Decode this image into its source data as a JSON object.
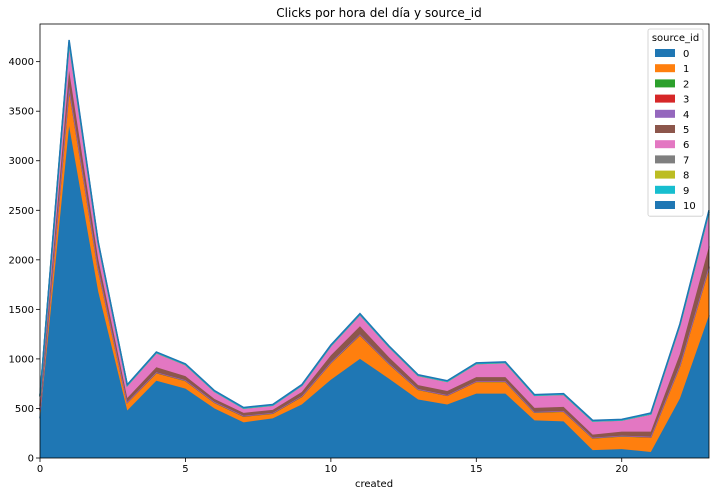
{
  "chart_data": {
    "type": "area",
    "stacked": true,
    "title": "Clicks por hora del día y source_id",
    "xlabel": "created",
    "ylabel": "",
    "xlim": [
      0,
      23
    ],
    "ylim": [
      0,
      4380
    ],
    "x_ticks": [
      0,
      5,
      10,
      15,
      20
    ],
    "y_ticks": [
      0,
      500,
      1000,
      1500,
      2000,
      2500,
      3000,
      3500,
      4000
    ],
    "grid": false,
    "legend": {
      "title": "source_id",
      "position": "top-right"
    },
    "x": [
      0,
      1,
      2,
      3,
      4,
      5,
      6,
      7,
      8,
      9,
      10,
      11,
      12,
      13,
      14,
      15,
      16,
      17,
      18,
      19,
      20,
      21,
      22,
      23
    ],
    "series": [
      {
        "name": "0",
        "color": "#1f77b4",
        "values": [
          400,
          3350,
          1680,
          480,
          780,
          700,
          500,
          360,
          400,
          540,
          790,
          1000,
          800,
          590,
          540,
          650,
          650,
          380,
          370,
          80,
          90,
          60,
          600,
          1440
        ]
      },
      {
        "name": "1",
        "color": "#ff7f0e",
        "values": [
          80,
          380,
          230,
          80,
          80,
          80,
          60,
          60,
          50,
          80,
          170,
          240,
          150,
          100,
          90,
          120,
          120,
          80,
          100,
          120,
          130,
          150,
          330,
          480
        ]
      },
      {
        "name": "2",
        "color": "#2ca02c",
        "values": [
          2,
          6,
          3,
          2,
          2,
          2,
          2,
          2,
          2,
          2,
          2,
          3,
          2,
          2,
          2,
          2,
          2,
          2,
          2,
          2,
          2,
          2,
          3,
          5
        ]
      },
      {
        "name": "3",
        "color": "#d62728",
        "values": [
          2,
          6,
          3,
          2,
          2,
          2,
          2,
          2,
          2,
          2,
          2,
          3,
          2,
          2,
          2,
          2,
          2,
          2,
          2,
          2,
          2,
          2,
          3,
          5
        ]
      },
      {
        "name": "4",
        "color": "#9467bd",
        "values": [
          2,
          6,
          3,
          2,
          2,
          2,
          2,
          2,
          2,
          2,
          2,
          3,
          2,
          2,
          2,
          2,
          2,
          2,
          2,
          2,
          2,
          2,
          3,
          5
        ]
      },
      {
        "name": "5",
        "color": "#8c564b",
        "values": [
          40,
          160,
          90,
          40,
          50,
          40,
          30,
          30,
          30,
          40,
          70,
          80,
          60,
          40,
          40,
          40,
          40,
          40,
          40,
          30,
          40,
          50,
          110,
          200
        ]
      },
      {
        "name": "6",
        "color": "#e377c2",
        "values": [
          90,
          260,
          150,
          120,
          140,
          110,
          70,
          40,
          40,
          60,
          90,
          110,
          100,
          90,
          90,
          130,
          140,
          120,
          120,
          130,
          110,
          170,
          280,
          330
        ]
      },
      {
        "name": "7",
        "color": "#7f7f7f",
        "values": [
          6,
          25,
          12,
          6,
          6,
          6,
          6,
          6,
          6,
          6,
          6,
          8,
          6,
          6,
          6,
          6,
          6,
          6,
          6,
          6,
          6,
          8,
          12,
          18
        ]
      },
      {
        "name": "8",
        "color": "#bcbd22",
        "values": [
          1,
          3,
          1,
          1,
          1,
          1,
          1,
          1,
          1,
          1,
          1,
          1,
          1,
          1,
          1,
          1,
          1,
          1,
          1,
          1,
          1,
          1,
          1,
          2
        ]
      },
      {
        "name": "9",
        "color": "#17becf",
        "values": [
          1,
          3,
          1,
          1,
          1,
          1,
          1,
          1,
          1,
          1,
          1,
          1,
          1,
          1,
          1,
          1,
          1,
          1,
          1,
          1,
          1,
          1,
          1,
          2
        ]
      },
      {
        "name": "10",
        "color": "#1f77b4",
        "values": [
          6,
          20,
          10,
          6,
          6,
          6,
          6,
          6,
          6,
          6,
          6,
          8,
          6,
          6,
          6,
          6,
          6,
          6,
          6,
          6,
          6,
          8,
          10,
          14
        ]
      }
    ]
  }
}
